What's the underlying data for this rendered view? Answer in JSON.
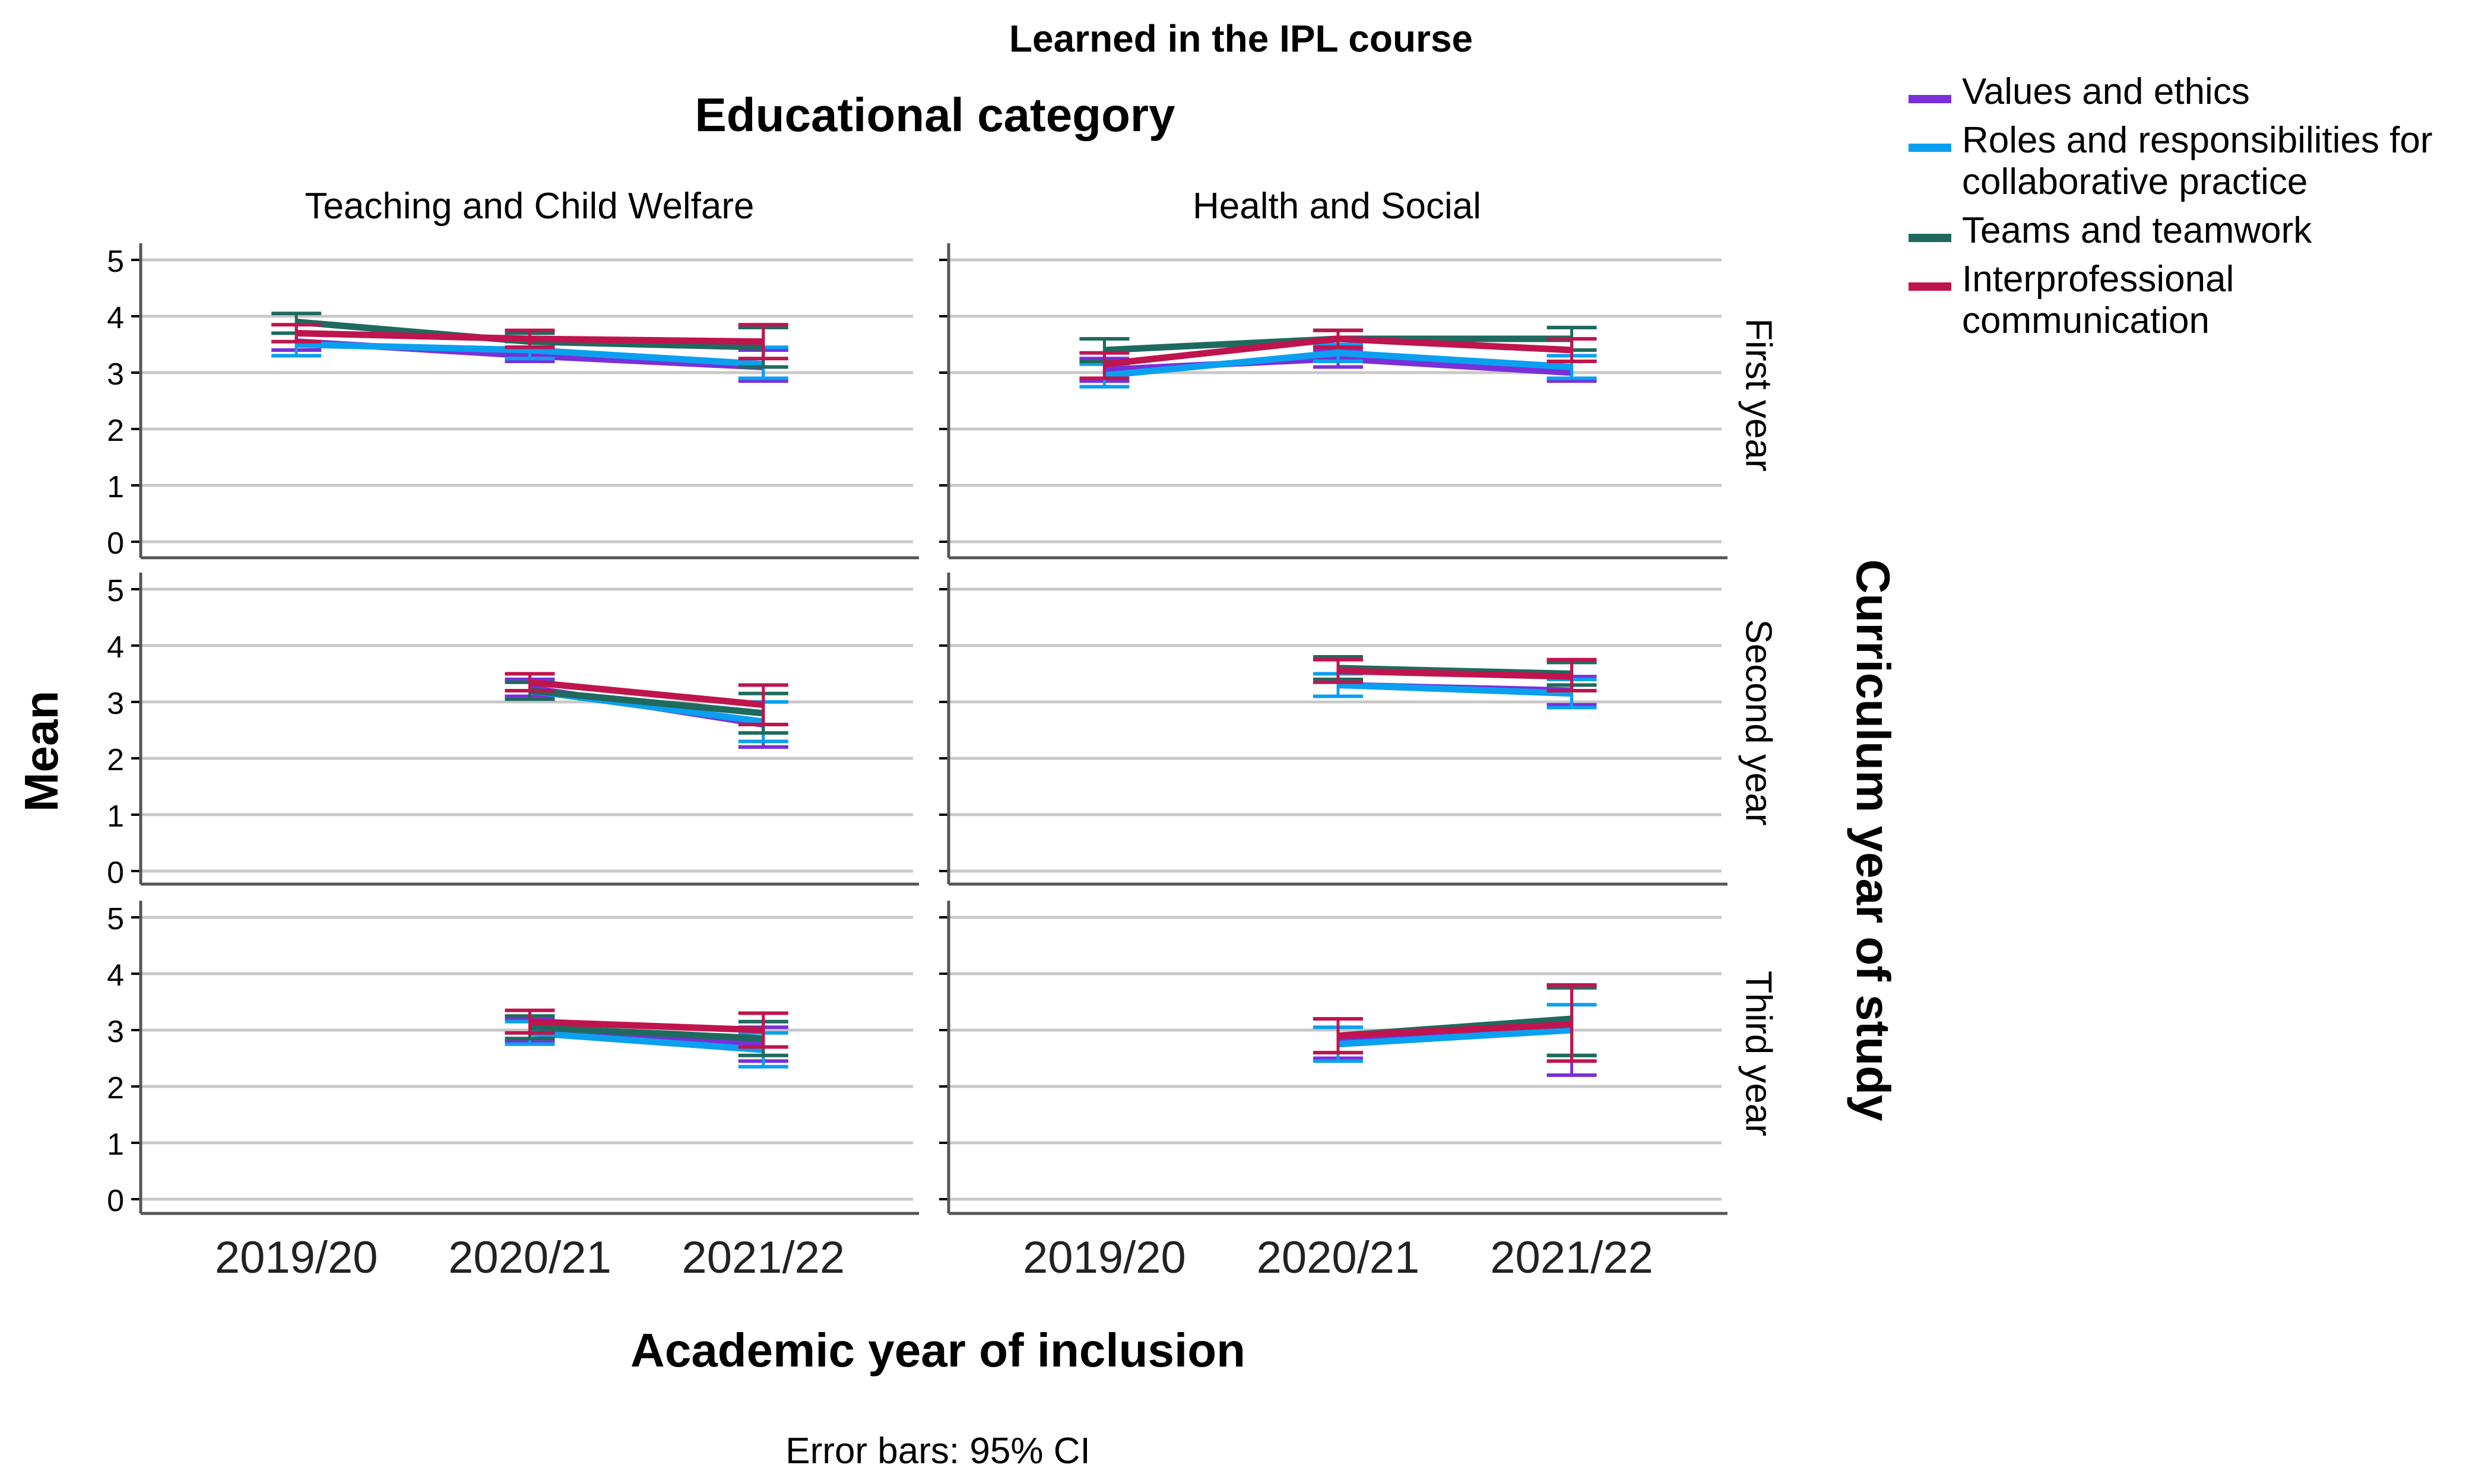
{
  "chart_data": {
    "type": "line",
    "title": "Learned in the IPL course",
    "column_facet_title": "Educational category",
    "row_facet_title": "Curriculum year of study",
    "xlabel": "Academic year of inclusion",
    "ylabel": "Mean",
    "footnote": "Error bars: 95% CI",
    "categories": [
      "2019/20",
      "2020/21",
      "2021/22"
    ],
    "ylim": [
      0,
      5
    ],
    "yticks": [
      "0",
      "1",
      "2",
      "3",
      "4",
      "5"
    ],
    "grid": true,
    "legend_position": "top-right",
    "columns": [
      "Teaching and Child Welfare",
      "Health and Social"
    ],
    "rows": [
      "First year",
      "Second year",
      "Third year"
    ],
    "series": [
      {
        "name": "Values and ethics",
        "color": "#7a2fd8"
      },
      {
        "name": "Roles and responsibilities for collaborative practice",
        "color": "#0aa0f0"
      },
      {
        "name": "Teams and teamwork",
        "color": "#1f6a5e"
      },
      {
        "name": "Interprofessional communication",
        "color": "#c0144e"
      }
    ],
    "panels": [
      {
        "row": 0,
        "col": 0,
        "series": [
          {
            "mean": [
              3.55,
              3.3,
              3.1
            ],
            "low": [
              3.4,
              3.2,
              2.85
            ],
            "high": [
              3.7,
              3.45,
              3.4
            ]
          },
          {
            "mean": [
              3.5,
              3.4,
              3.15
            ],
            "low": [
              3.3,
              3.25,
              2.9
            ],
            "high": [
              3.7,
              3.55,
              3.45
            ]
          },
          {
            "mean": [
              3.9,
              3.55,
              3.45
            ],
            "low": [
              3.7,
              3.45,
              3.1
            ],
            "high": [
              4.05,
              3.7,
              3.8
            ]
          },
          {
            "mean": [
              3.7,
              3.6,
              3.55
            ],
            "low": [
              3.55,
              3.45,
              3.25
            ],
            "high": [
              3.85,
              3.75,
              3.85
            ]
          }
        ]
      },
      {
        "row": 0,
        "col": 1,
        "series": [
          {
            "mean": [
              3.05,
              3.25,
              3.0
            ],
            "low": [
              2.85,
              3.1,
              2.85
            ],
            "high": [
              3.25,
              3.4,
              3.2
            ]
          },
          {
            "mean": [
              2.95,
              3.35,
              3.1
            ],
            "low": [
              2.75,
              3.2,
              2.9
            ],
            "high": [
              3.15,
              3.5,
              3.3
            ]
          },
          {
            "mean": [
              3.4,
              3.6,
              3.6
            ],
            "low": [
              3.2,
              3.45,
              3.4
            ],
            "high": [
              3.6,
              3.75,
              3.8
            ]
          },
          {
            "mean": [
              3.15,
              3.6,
              3.4
            ],
            "low": [
              2.9,
              3.45,
              3.2
            ],
            "high": [
              3.35,
              3.75,
              3.6
            ]
          }
        ]
      },
      {
        "row": 1,
        "col": 0,
        "series": [
          {
            "mean": [
              null,
              3.25,
              2.6
            ],
            "low": [
              null,
              3.1,
              2.2
            ],
            "high": [
              null,
              3.4,
              3.0
            ]
          },
          {
            "mean": [
              null,
              3.2,
              2.65
            ],
            "low": [
              null,
              3.05,
              2.3
            ],
            "high": [
              null,
              3.35,
              3.0
            ]
          },
          {
            "mean": [
              null,
              3.2,
              2.8
            ],
            "low": [
              null,
              3.05,
              2.45
            ],
            "high": [
              null,
              3.35,
              3.15
            ]
          },
          {
            "mean": [
              null,
              3.35,
              2.95
            ],
            "low": [
              null,
              3.2,
              2.6
            ],
            "high": [
              null,
              3.5,
              3.3
            ]
          }
        ]
      },
      {
        "row": 1,
        "col": 1,
        "series": [
          {
            "mean": [
              null,
              3.3,
              3.2
            ],
            "low": [
              null,
              3.1,
              2.95
            ],
            "high": [
              null,
              3.5,
              3.45
            ]
          },
          {
            "mean": [
              null,
              3.3,
              3.15
            ],
            "low": [
              null,
              3.1,
              2.9
            ],
            "high": [
              null,
              3.5,
              3.4
            ]
          },
          {
            "mean": [
              null,
              3.6,
              3.5
            ],
            "low": [
              null,
              3.4,
              3.3
            ],
            "high": [
              null,
              3.8,
              3.7
            ]
          },
          {
            "mean": [
              null,
              3.55,
              3.45
            ],
            "low": [
              null,
              3.35,
              3.2
            ],
            "high": [
              null,
              3.75,
              3.75
            ]
          }
        ]
      },
      {
        "row": 2,
        "col": 0,
        "series": [
          {
            "mean": [
              null,
              3.0,
              2.75
            ],
            "low": [
              null,
              2.8,
              2.45
            ],
            "high": [
              null,
              3.2,
              3.05
            ]
          },
          {
            "mean": [
              null,
              2.95,
              2.65
            ],
            "low": [
              null,
              2.75,
              2.35
            ],
            "high": [
              null,
              3.15,
              2.95
            ]
          },
          {
            "mean": [
              null,
              3.05,
              2.85
            ],
            "low": [
              null,
              2.85,
              2.55
            ],
            "high": [
              null,
              3.25,
              3.15
            ]
          },
          {
            "mean": [
              null,
              3.15,
              3.0
            ],
            "low": [
              null,
              2.95,
              2.7
            ],
            "high": [
              null,
              3.35,
              3.3
            ]
          }
        ]
      },
      {
        "row": 2,
        "col": 1,
        "series": [
          {
            "mean": [
              null,
              2.85,
              3.0
            ],
            "low": [
              null,
              2.5,
              2.2
            ],
            "high": [
              null,
              3.2,
              3.8
            ]
          },
          {
            "mean": [
              null,
              2.75,
              3.0
            ],
            "low": [
              null,
              2.45,
              2.55
            ],
            "high": [
              null,
              3.05,
              3.45
            ]
          },
          {
            "mean": [
              null,
              2.9,
              3.2
            ],
            "low": [
              null,
              2.6,
              2.55
            ],
            "high": [
              null,
              3.2,
              3.75
            ]
          },
          {
            "mean": [
              null,
              2.9,
              3.1
            ],
            "low": [
              null,
              2.6,
              2.45
            ],
            "high": [
              null,
              3.2,
              3.8
            ]
          }
        ]
      }
    ]
  }
}
